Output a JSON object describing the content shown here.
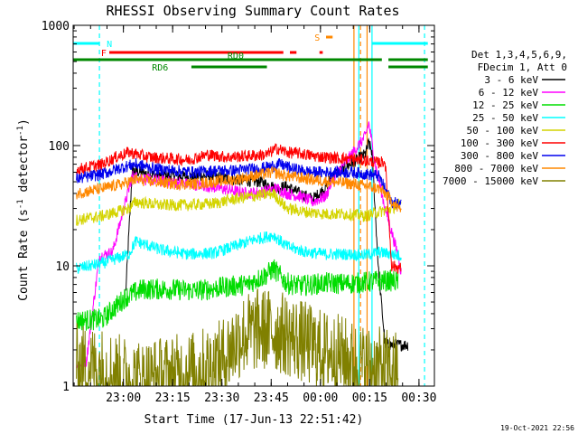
{
  "chart_data": {
    "type": "line",
    "title": "RHESSI Observing Summary Count Rates",
    "xlabel": "Start Time (17-Jun-13 22:51:42)",
    "ylabel_main": "Count Rate (s",
    "ylabel_sup1": "-1",
    "ylabel_mid": " detector",
    "ylabel_sup2": "-1",
    "ylabel_end": ")",
    "ylim": [
      1,
      1000
    ],
    "yscale": "log",
    "xlim_minutes": [
      -7,
      103
    ],
    "x_ticks": [
      {
        "label": "23:00",
        "m": 8.3
      },
      {
        "label": "23:15",
        "m": 23.3
      },
      {
        "label": "23:30",
        "m": 38.3
      },
      {
        "label": "23:45",
        "m": 53.3
      },
      {
        "label": "00:00",
        "m": 68.3
      },
      {
        "label": "00:15",
        "m": 83.3
      },
      {
        "label": "00:30",
        "m": 98.3
      }
    ],
    "y_ticks": [
      {
        "label": "1",
        "v": 1
      },
      {
        "label": "10",
        "v": 10
      },
      {
        "label": "100",
        "v": 100
      },
      {
        "label": "1000",
        "v": 1000
      }
    ],
    "legend_header": [
      "Det 1,3,4,5,6,9,",
      "FDecim 1, Att 0"
    ],
    "series": [
      {
        "name": "3 - 6 keV",
        "color": "#000000",
        "points": [
          [
            9,
            6
          ],
          [
            11,
            62
          ],
          [
            16,
            58
          ],
          [
            22,
            56
          ],
          [
            28,
            55
          ],
          [
            35,
            56
          ],
          [
            42,
            52
          ],
          [
            50,
            50
          ],
          [
            55,
            44
          ],
          [
            58,
            46
          ],
          [
            62,
            40
          ],
          [
            66,
            36
          ],
          [
            70,
            45
          ],
          [
            72,
            56
          ],
          [
            82,
            85
          ],
          [
            83,
            105
          ],
          [
            84,
            88
          ],
          [
            86,
            9
          ],
          [
            88,
            2.2
          ],
          [
            92,
            2.2
          ],
          [
            95,
            2.2
          ]
        ]
      },
      {
        "name": "6 - 12 keV",
        "color": "#ff00ff",
        "points": [
          [
            -6,
            1.5
          ],
          [
            -3,
            1.6
          ],
          [
            1,
            12
          ],
          [
            5,
            13
          ],
          [
            11,
            56
          ],
          [
            16,
            52
          ],
          [
            22,
            50
          ],
          [
            28,
            48
          ],
          [
            34,
            46
          ],
          [
            40,
            43
          ],
          [
            46,
            40
          ],
          [
            50,
            41
          ],
          [
            55,
            44
          ],
          [
            58,
            40
          ],
          [
            62,
            38
          ],
          [
            66,
            34
          ],
          [
            70,
            38
          ],
          [
            72,
            52
          ],
          [
            82,
            120
          ],
          [
            83,
            155
          ],
          [
            85,
            70
          ],
          [
            88,
            30
          ],
          [
            92,
            12
          ],
          [
            93,
            8.5
          ]
        ]
      },
      {
        "name": "12 - 25 keV",
        "color": "#00dd00",
        "points": [
          [
            -6,
            3.5
          ],
          [
            2,
            3.6
          ],
          [
            9,
            5.5
          ],
          [
            14,
            6.4
          ],
          [
            22,
            6.4
          ],
          [
            30,
            6.2
          ],
          [
            38,
            6.6
          ],
          [
            46,
            7
          ],
          [
            52,
            8.5
          ],
          [
            54,
            9.5
          ],
          [
            58,
            7.2
          ],
          [
            62,
            6.8
          ],
          [
            66,
            7
          ],
          [
            70,
            7.2
          ],
          [
            75,
            7.1
          ],
          [
            80,
            7.2
          ],
          [
            86,
            7.5
          ],
          [
            90,
            7.5
          ],
          [
            92,
            7.4
          ]
        ]
      },
      {
        "name": "25 - 50 keV",
        "color": "#00ffff",
        "points": [
          [
            -6,
            9.5
          ],
          [
            2,
            10.5
          ],
          [
            10,
            12.5
          ],
          [
            12,
            16
          ],
          [
            20,
            13.5
          ],
          [
            28,
            12.5
          ],
          [
            36,
            12.8
          ],
          [
            42,
            14.5
          ],
          [
            48,
            16.5
          ],
          [
            54,
            18
          ],
          [
            58,
            14.5
          ],
          [
            64,
            13
          ],
          [
            70,
            12.5
          ],
          [
            76,
            12.5
          ],
          [
            82,
            12.3
          ],
          [
            86,
            13
          ],
          [
            90,
            12.5
          ],
          [
            93,
            12
          ]
        ]
      },
      {
        "name": "50 - 100 keV",
        "color": "#d4d400",
        "points": [
          [
            -6,
            24
          ],
          [
            2,
            26
          ],
          [
            10,
            30
          ],
          [
            12,
            34
          ],
          [
            20,
            32
          ],
          [
            28,
            32
          ],
          [
            36,
            33
          ],
          [
            42,
            36
          ],
          [
            48,
            38
          ],
          [
            54,
            40
          ],
          [
            58,
            30
          ],
          [
            64,
            28
          ],
          [
            70,
            27
          ],
          [
            76,
            27
          ],
          [
            82,
            26
          ],
          [
            86,
            28
          ],
          [
            90,
            30
          ],
          [
            93,
            33
          ]
        ]
      },
      {
        "name": "100 - 300 keV",
        "color": "#ff0000",
        "points": [
          [
            -6,
            63
          ],
          [
            2,
            70
          ],
          [
            6,
            80
          ],
          [
            10,
            88
          ],
          [
            16,
            80
          ],
          [
            22,
            78
          ],
          [
            28,
            76
          ],
          [
            34,
            84
          ],
          [
            40,
            80
          ],
          [
            46,
            82
          ],
          [
            52,
            84
          ],
          [
            55,
            95
          ],
          [
            58,
            88
          ],
          [
            62,
            86
          ],
          [
            66,
            82
          ],
          [
            70,
            80
          ],
          [
            76,
            78
          ],
          [
            82,
            75
          ],
          [
            86,
            72
          ],
          [
            88,
            74
          ],
          [
            90,
            10
          ],
          [
            93,
            9.5
          ]
        ]
      },
      {
        "name": "300 - 800 keV",
        "color": "#0000ee",
        "points": [
          [
            -6,
            53
          ],
          [
            2,
            58
          ],
          [
            8,
            66
          ],
          [
            12,
            70
          ],
          [
            18,
            64
          ],
          [
            24,
            62
          ],
          [
            30,
            60
          ],
          [
            36,
            62
          ],
          [
            42,
            62
          ],
          [
            48,
            64
          ],
          [
            52,
            66
          ],
          [
            56,
            70
          ],
          [
            60,
            64
          ],
          [
            66,
            60
          ],
          [
            72,
            60
          ],
          [
            78,
            60
          ],
          [
            82,
            58
          ],
          [
            86,
            56
          ],
          [
            90,
            34
          ],
          [
            93,
            32
          ]
        ]
      },
      {
        "name": "800 - 7000 keV",
        "color": "#ff8800",
        "points": [
          [
            -6,
            40
          ],
          [
            2,
            44
          ],
          [
            8,
            48
          ],
          [
            12,
            52
          ],
          [
            18,
            50
          ],
          [
            24,
            48
          ],
          [
            30,
            48
          ],
          [
            36,
            50
          ],
          [
            42,
            52
          ],
          [
            48,
            56
          ],
          [
            54,
            60
          ],
          [
            58,
            56
          ],
          [
            62,
            54
          ],
          [
            66,
            52
          ],
          [
            72,
            50
          ],
          [
            78,
            48
          ],
          [
            82,
            46
          ],
          [
            86,
            44
          ],
          [
            88,
            40
          ],
          [
            92,
            30
          ],
          [
            93,
            30
          ]
        ]
      },
      {
        "name": "7000 - 15000 keV",
        "color": "#808000",
        "points": [
          [
            -6,
            1.5
          ],
          [
            2,
            1.4
          ],
          [
            8,
            1.2
          ],
          [
            14,
            1.1
          ],
          [
            22,
            1.2
          ],
          [
            30,
            1.3
          ],
          [
            38,
            1.6
          ],
          [
            44,
            2.6
          ],
          [
            50,
            3.0
          ],
          [
            56,
            2.8
          ],
          [
            62,
            2.4
          ],
          [
            68,
            2.0
          ],
          [
            74,
            1.8
          ],
          [
            80,
            1.5
          ],
          [
            86,
            1.4
          ],
          [
            92,
            1.3
          ]
        ]
      }
    ],
    "flag_labels": [
      "N",
      "F",
      "RD0",
      "RD6",
      "S"
    ],
    "flags": [
      {
        "label": "N",
        "color": "#00ffff",
        "y": 0.958,
        "segments": [
          [
            -7,
            1
          ],
          [
            84,
            101
          ]
        ]
      },
      {
        "label": "F",
        "color": "#ff0000",
        "y": 0.924,
        "segments": [
          [
            4,
            57
          ],
          [
            59,
            61
          ],
          [
            68,
            69
          ]
        ]
      },
      {
        "label": "RD0",
        "color": "#008800",
        "y": 0.908,
        "segments": [
          [
            -7,
            87
          ],
          [
            89,
            101
          ]
        ]
      },
      {
        "label": "RD6",
        "color": "#008800",
        "y": 0.892,
        "segments": [
          [
            29,
            52
          ],
          [
            89,
            101
          ]
        ]
      },
      {
        "label": "S",
        "color": "#ff8800",
        "y": 0.973,
        "segments": [
          [
            70,
            72
          ]
        ]
      }
    ],
    "vlines": [
      {
        "m": 1,
        "color": "#00ffff",
        "dash": true
      },
      {
        "m": 84,
        "color": "#00ffff",
        "dash": false
      },
      {
        "m": 80,
        "color": "#00ffff",
        "dash": false
      },
      {
        "m": 100,
        "color": "#00ffff",
        "dash": true
      },
      {
        "m": 78.5,
        "color": "#ff8800",
        "dash": false
      },
      {
        "m": 82.5,
        "color": "#ff8800",
        "dash": false
      },
      {
        "m": 80.5,
        "color": "#ff8800",
        "dash": true
      }
    ],
    "footer": "19-Oct-2021 22:56"
  }
}
